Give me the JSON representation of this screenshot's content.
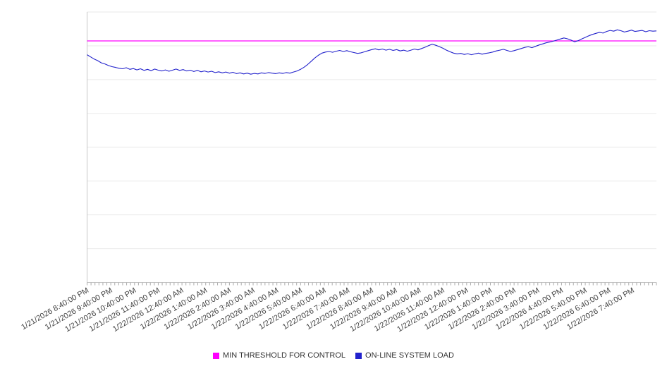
{
  "page": {
    "background": "#FFFFFF"
  },
  "legend": {
    "position": "bottom-center"
  },
  "chart_data": {
    "type": "line",
    "title": "",
    "xlabel": "",
    "ylabel": "",
    "y_axis_labels_visible": false,
    "grid": true,
    "grid_color": "#E9E9E9",
    "axis_color": "#C6C6C6",
    "tick_color": "#ABABAB",
    "label_color": "#444444",
    "legend_position": "bottom",
    "x_label_rotation_deg": -30,
    "minor_ticks_per_hour": 6,
    "ylim": [
      0,
      100
    ],
    "y_gridline_step": 12.5,
    "x_tick_labels": [
      "1/21/2026 8:40:00 PM",
      "1/21/2026 9:40:00 PM",
      "1/21/2026 10:40:00 PM",
      "1/21/2026 11:40:00 PM",
      "1/22/2026 12:40:00 AM",
      "1/22/2026 1:40:00 AM",
      "1/22/2026 2:40:00 AM",
      "1/22/2026 3:40:00 AM",
      "1/22/2026 4:40:00 AM",
      "1/22/2026 5:40:00 AM",
      "1/22/2026 6:40:00 AM",
      "1/22/2026 7:40:00 AM",
      "1/22/2026 8:40:00 AM",
      "1/22/2026 9:40:00 AM",
      "1/22/2026 10:40:00 AM",
      "1/22/2026 11:40:00 AM",
      "1/22/2026 12:40:00 PM",
      "1/22/2026 1:40:00 PM",
      "1/22/2026 2:40:00 PM",
      "1/22/2026 3:40:00 PM",
      "1/22/2026 4:40:00 PM",
      "1/22/2026 5:40:00 PM",
      "1/22/2026 6:40:00 PM",
      "1/22/2026 7:40:00 PM"
    ],
    "series": [
      {
        "name": "MIN THRESHOLD FOR CONTROL",
        "type": "threshold",
        "color": "#FF00FF",
        "value": 89.3
      },
      {
        "name": "ON-LINE SYSTEM LOAD",
        "type": "line",
        "color": "#2222CC",
        "values": [
          84.2,
          83.4,
          82.6,
          82.0,
          81.2,
          80.8,
          80.2,
          79.8,
          79.5,
          79.2,
          79.0,
          79.4,
          78.8,
          79.1,
          78.6,
          79.0,
          78.4,
          78.8,
          78.3,
          78.9,
          78.5,
          78.2,
          78.6,
          78.1,
          78.5,
          78.9,
          78.4,
          78.7,
          78.2,
          78.5,
          78.0,
          78.4,
          77.9,
          78.2,
          77.8,
          78.1,
          77.6,
          77.9,
          77.5,
          77.8,
          77.4,
          77.7,
          77.2,
          77.5,
          77.1,
          77.4,
          77.0,
          77.3,
          77.1,
          77.5,
          77.3,
          77.6,
          77.4,
          77.2,
          77.5,
          77.3,
          77.6,
          77.4,
          77.8,
          78.2,
          78.8,
          79.6,
          80.6,
          81.8,
          83.0,
          84.0,
          84.8,
          85.2,
          85.4,
          85.1,
          85.5,
          85.8,
          85.4,
          85.7,
          85.3,
          85.0,
          84.7,
          84.9,
          85.3,
          85.7,
          86.1,
          86.4,
          86.0,
          86.3,
          85.9,
          86.2,
          85.8,
          86.1,
          85.6,
          85.9,
          85.5,
          85.9,
          86.3,
          86.0,
          86.5,
          87.0,
          87.6,
          88.1,
          87.7,
          87.2,
          86.6,
          85.9,
          85.3,
          84.8,
          84.5,
          84.7,
          84.3,
          84.6,
          84.2,
          84.5,
          84.8,
          84.4,
          84.7,
          84.9,
          85.2,
          85.6,
          85.9,
          86.2,
          85.8,
          85.4,
          85.7,
          86.1,
          86.5,
          86.9,
          87.2,
          86.8,
          87.3,
          87.8,
          88.2,
          88.6,
          88.9,
          89.2,
          89.6,
          90.0,
          90.4,
          90.1,
          89.6,
          89.0,
          89.4,
          90.0,
          90.6,
          91.2,
          91.7,
          92.1,
          92.5,
          92.2,
          92.8,
          93.2,
          92.9,
          93.4,
          93.1,
          92.6,
          92.9,
          93.3,
          92.8,
          93.0,
          93.2,
          92.7,
          93.1,
          92.9,
          93.0
        ]
      }
    ]
  }
}
